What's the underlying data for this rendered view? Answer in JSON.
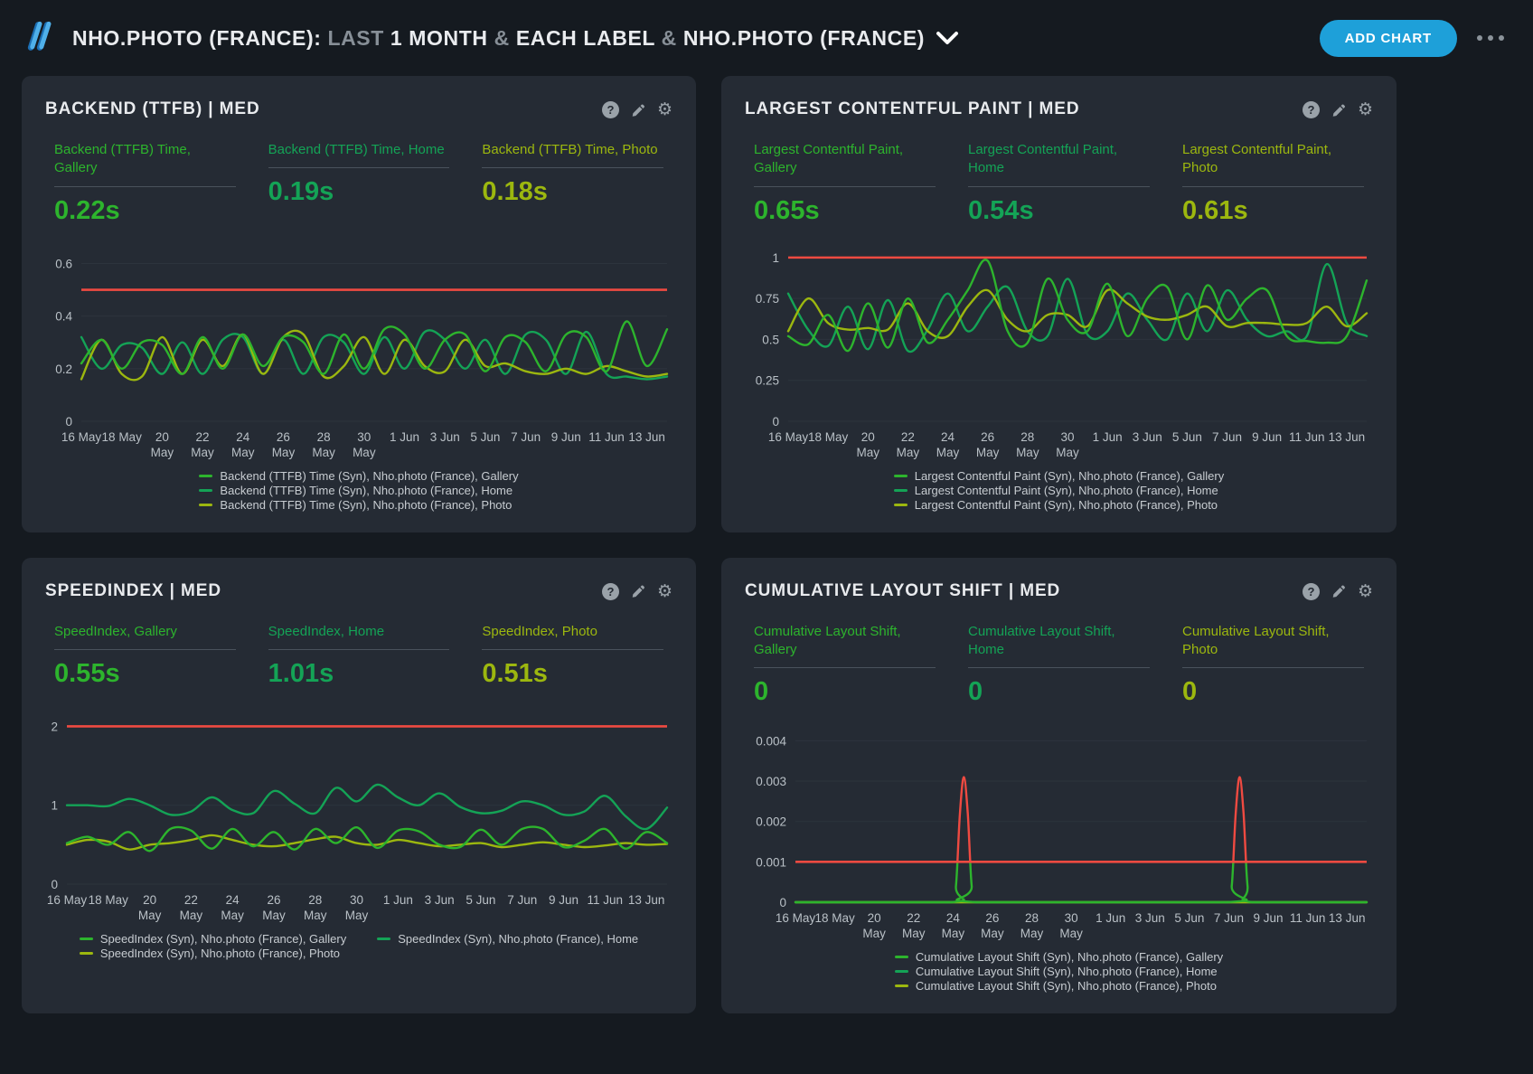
{
  "header": {
    "title_segments": [
      {
        "text": "NHO.PHOTO (FRANCE): ",
        "muted": false
      },
      {
        "text": "LAST ",
        "muted": true
      },
      {
        "text": "1 MONTH ",
        "muted": false
      },
      {
        "text": "& ",
        "muted": true
      },
      {
        "text": "EACH LABEL ",
        "muted": false
      },
      {
        "text": "& ",
        "muted": true
      },
      {
        "text": "NHO.PHOTO (FRANCE)",
        "muted": false
      }
    ],
    "add_chart_label": "ADD CHART",
    "icons": [
      "speedcurve-logo",
      "chevron-down-icon",
      "more-options-icon"
    ]
  },
  "card_icons": [
    "help-icon",
    "edit-icon",
    "settings-icon"
  ],
  "colors": {
    "page_bg": "#151a20",
    "panel_bg": "#252b34",
    "accent_blue": "#1ea0d9",
    "threshold_red": "#ef4a41",
    "series": {
      "gallery": "#2db42d",
      "home": "#14a356",
      "photo": "#9cb70f"
    }
  },
  "x_tick_note": "ticks every 2 days from 16 May to 13 Jun",
  "chart_data": [
    {
      "type": "line",
      "title": "BACKEND (TTFB) | MED",
      "stats": [
        {
          "label": "Backend (TTFB) Time, Gallery",
          "value": "0.22s",
          "series": "gallery"
        },
        {
          "label": "Backend (TTFB) Time, Home",
          "value": "0.19s",
          "series": "home"
        },
        {
          "label": "Backend (TTFB) Time, Photo",
          "value": "0.18s",
          "series": "photo"
        }
      ],
      "ylim": [
        0,
        0.66
      ],
      "yticks": [
        0,
        0.2,
        0.4,
        0.6
      ],
      "ytick_labels": [
        "0",
        "0.2",
        "0.4",
        "0.6"
      ],
      "threshold": 0.5,
      "x_tick_labels": [
        [
          "16 May",
          ""
        ],
        [
          "18 May",
          ""
        ],
        [
          "20",
          "May"
        ],
        [
          "22",
          "May"
        ],
        [
          "24",
          "May"
        ],
        [
          "26",
          "May"
        ],
        [
          "28",
          "May"
        ],
        [
          "30",
          "May"
        ],
        [
          "1 Jun",
          ""
        ],
        [
          "3 Jun",
          ""
        ],
        [
          "5 Jun",
          ""
        ],
        [
          "7 Jun",
          ""
        ],
        [
          "9 Jun",
          ""
        ],
        [
          "11 Jun",
          ""
        ],
        [
          "13 Jun",
          ""
        ]
      ],
      "series": [
        {
          "name": "home",
          "values": [
            0.32,
            0.2,
            0.29,
            0.28,
            0.18,
            0.3,
            0.18,
            0.31,
            0.32,
            0.18,
            0.31,
            0.18,
            0.32,
            0.3,
            0.18,
            0.32,
            0.2,
            0.34,
            0.31,
            0.2,
            0.31,
            0.18,
            0.33,
            0.31,
            0.18,
            0.34,
            0.18,
            0.17,
            0.16,
            0.17
          ]
        },
        {
          "name": "photo",
          "values": [
            0.16,
            0.31,
            0.18,
            0.17,
            0.32,
            0.18,
            0.31,
            0.21,
            0.33,
            0.18,
            0.32,
            0.33,
            0.17,
            0.21,
            0.32,
            0.18,
            0.31,
            0.21,
            0.19,
            0.31,
            0.21,
            0.22,
            0.19,
            0.18,
            0.2,
            0.18,
            0.21,
            0.19,
            0.17,
            0.18
          ]
        },
        {
          "name": "gallery",
          "values": [
            0.22,
            0.31,
            0.2,
            0.3,
            0.29,
            0.18,
            0.32,
            0.2,
            0.33,
            0.21,
            0.32,
            0.3,
            0.18,
            0.33,
            0.2,
            0.35,
            0.33,
            0.2,
            0.31,
            0.33,
            0.19,
            0.32,
            0.3,
            0.19,
            0.33,
            0.32,
            0.19,
            0.38,
            0.21,
            0.35
          ]
        }
      ],
      "legend_rows": [
        [
          {
            "series": "gallery",
            "label": "Backend (TTFB) Time (Syn), Nho.photo (France), Gallery"
          }
        ],
        [
          {
            "series": "home",
            "label": "Backend (TTFB) Time (Syn), Nho.photo (France), Home"
          }
        ],
        [
          {
            "series": "photo",
            "label": "Backend (TTFB) Time (Syn), Nho.photo (France), Photo"
          }
        ]
      ]
    },
    {
      "type": "line",
      "title": "LARGEST CONTENTFUL PAINT | MED",
      "stats": [
        {
          "label": "Largest Contentful Paint, Gallery",
          "value": "0.65s",
          "series": "gallery"
        },
        {
          "label": "Largest Contentful Paint, Home",
          "value": "0.54s",
          "series": "home"
        },
        {
          "label": "Largest Contentful Paint, Photo",
          "value": "0.61s",
          "series": "photo"
        }
      ],
      "ylim": [
        0,
        1.06
      ],
      "yticks": [
        0,
        0.25,
        0.5,
        0.75,
        1
      ],
      "ytick_labels": [
        "0",
        "0.25",
        "0.5",
        "0.75",
        "1"
      ],
      "threshold": 1,
      "x_tick_labels": [
        [
          "16 May",
          ""
        ],
        [
          "18 May",
          ""
        ],
        [
          "20",
          "May"
        ],
        [
          "22",
          "May"
        ],
        [
          "24",
          "May"
        ],
        [
          "26",
          "May"
        ],
        [
          "28",
          "May"
        ],
        [
          "30",
          "May"
        ],
        [
          "1 Jun",
          ""
        ],
        [
          "3 Jun",
          ""
        ],
        [
          "5 Jun",
          ""
        ],
        [
          "7 Jun",
          ""
        ],
        [
          "9 Jun",
          ""
        ],
        [
          "11 Jun",
          ""
        ],
        [
          "13 Jun",
          ""
        ]
      ],
      "series": [
        {
          "name": "home",
          "values": [
            0.78,
            0.56,
            0.46,
            0.7,
            0.44,
            0.74,
            0.43,
            0.56,
            0.78,
            0.55,
            0.7,
            0.82,
            0.55,
            0.52,
            0.87,
            0.53,
            0.55,
            0.78,
            0.62,
            0.5,
            0.78,
            0.55,
            0.8,
            0.62,
            0.52,
            0.55,
            0.52,
            0.96,
            0.6,
            0.52
          ]
        },
        {
          "name": "photo",
          "values": [
            0.55,
            0.75,
            0.6,
            0.56,
            0.57,
            0.56,
            0.72,
            0.55,
            0.52,
            0.7,
            0.8,
            0.62,
            0.55,
            0.65,
            0.65,
            0.58,
            0.8,
            0.72,
            0.64,
            0.62,
            0.65,
            0.7,
            0.58,
            0.6,
            0.6,
            0.59,
            0.6,
            0.7,
            0.58,
            0.66
          ]
        },
        {
          "name": "gallery",
          "values": [
            0.52,
            0.47,
            0.65,
            0.43,
            0.72,
            0.45,
            0.75,
            0.48,
            0.62,
            0.8,
            0.98,
            0.55,
            0.48,
            0.87,
            0.62,
            0.55,
            0.84,
            0.52,
            0.75,
            0.82,
            0.5,
            0.83,
            0.62,
            0.75,
            0.8,
            0.52,
            0.49,
            0.48,
            0.52,
            0.86
          ]
        }
      ],
      "legend_rows": [
        [
          {
            "series": "gallery",
            "label": "Largest Contentful Paint (Syn), Nho.photo (France), Gallery"
          }
        ],
        [
          {
            "series": "home",
            "label": "Largest Contentful Paint (Syn), Nho.photo (France), Home"
          }
        ],
        [
          {
            "series": "photo",
            "label": "Largest Contentful Paint (Syn), Nho.photo (France), Photo"
          }
        ]
      ]
    },
    {
      "type": "line",
      "title": "SPEEDINDEX | MED",
      "stats": [
        {
          "label": "SpeedIndex, Gallery",
          "value": "0.55s",
          "series": "gallery"
        },
        {
          "label": "SpeedIndex, Home",
          "value": "1.01s",
          "series": "home"
        },
        {
          "label": "SpeedIndex, Photo",
          "value": "0.51s",
          "series": "photo"
        }
      ],
      "ylim": [
        0,
        2.2
      ],
      "yticks": [
        0,
        1,
        2
      ],
      "ytick_labels": [
        "0",
        "1",
        "2"
      ],
      "threshold": 2,
      "x_tick_labels": [
        [
          "16 May",
          ""
        ],
        [
          "18 May",
          ""
        ],
        [
          "20",
          "May"
        ],
        [
          "22",
          "May"
        ],
        [
          "24",
          "May"
        ],
        [
          "26",
          "May"
        ],
        [
          "28",
          "May"
        ],
        [
          "30",
          "May"
        ],
        [
          "1 Jun",
          ""
        ],
        [
          "3 Jun",
          ""
        ],
        [
          "5 Jun",
          ""
        ],
        [
          "7 Jun",
          ""
        ],
        [
          "9 Jun",
          ""
        ],
        [
          "11 Jun",
          ""
        ],
        [
          "13 Jun",
          ""
        ]
      ],
      "series": [
        {
          "name": "home",
          "values": [
            1.0,
            1.0,
            0.99,
            1.08,
            1.0,
            0.88,
            0.92,
            1.1,
            0.94,
            0.9,
            1.18,
            1.02,
            0.9,
            1.22,
            1.05,
            1.26,
            1.1,
            1.0,
            1.15,
            0.98,
            0.9,
            0.93,
            1.05,
            1.0,
            0.88,
            0.92,
            1.12,
            0.86,
            0.7,
            0.97
          ]
        },
        {
          "name": "photo",
          "values": [
            0.5,
            0.56,
            0.54,
            0.44,
            0.5,
            0.52,
            0.56,
            0.62,
            0.56,
            0.5,
            0.48,
            0.52,
            0.57,
            0.6,
            0.52,
            0.5,
            0.56,
            0.52,
            0.48,
            0.5,
            0.52,
            0.47,
            0.5,
            0.53,
            0.5,
            0.47,
            0.49,
            0.52,
            0.5,
            0.51
          ]
        },
        {
          "name": "gallery",
          "values": [
            0.52,
            0.6,
            0.5,
            0.66,
            0.42,
            0.7,
            0.68,
            0.45,
            0.7,
            0.48,
            0.66,
            0.44,
            0.7,
            0.52,
            0.72,
            0.46,
            0.68,
            0.67,
            0.5,
            0.47,
            0.69,
            0.5,
            0.7,
            0.7,
            0.47,
            0.55,
            0.7,
            0.45,
            0.66,
            0.52
          ]
        }
      ],
      "legend_rows": [
        [
          {
            "series": "gallery",
            "label": "SpeedIndex (Syn), Nho.photo (France), Gallery"
          },
          {
            "series": "home",
            "label": "SpeedIndex (Syn), Nho.photo (France), Home"
          }
        ],
        [
          {
            "series": "photo",
            "label": "SpeedIndex (Syn), Nho.photo (France), Photo"
          }
        ]
      ]
    },
    {
      "type": "line",
      "title": "CUMULATIVE LAYOUT SHIFT | MED",
      "stats": [
        {
          "label": "Cumulative Layout Shift, Gallery",
          "value": "0",
          "series": "gallery"
        },
        {
          "label": "Cumulative Layout Shift, Home",
          "value": "0",
          "series": "home"
        },
        {
          "label": "Cumulative Layout Shift, Photo",
          "value": "0",
          "series": "photo"
        }
      ],
      "ylim": [
        0,
        0.0043
      ],
      "yticks": [
        0,
        0.001,
        0.002,
        0.003,
        0.004
      ],
      "ytick_labels": [
        "0",
        "0.001",
        "0.002",
        "0.003",
        "0.004"
      ],
      "threshold": 0.001,
      "threshold_split": true,
      "x_tick_labels": [
        [
          "16 May",
          ""
        ],
        [
          "18 May",
          ""
        ],
        [
          "20",
          "May"
        ],
        [
          "22",
          "May"
        ],
        [
          "24",
          "May"
        ],
        [
          "26",
          "May"
        ],
        [
          "28",
          "May"
        ],
        [
          "30",
          "May"
        ],
        [
          "1 Jun",
          ""
        ],
        [
          "3 Jun",
          ""
        ],
        [
          "5 Jun",
          ""
        ],
        [
          "7 Jun",
          ""
        ],
        [
          "9 Jun",
          ""
        ],
        [
          "11 Jun",
          ""
        ],
        [
          "13 Jun",
          ""
        ]
      ],
      "series": [
        {
          "name": "home",
          "values": [
            0,
            0,
            0,
            0,
            0,
            0,
            0,
            0,
            0,
            0,
            0,
            0,
            0,
            0,
            0,
            0,
            0,
            0,
            0,
            0,
            0,
            0,
            0,
            0,
            0,
            0,
            0,
            0,
            0,
            0
          ]
        },
        {
          "name": "photo",
          "values": [
            0,
            0,
            0,
            0,
            0,
            0,
            0,
            0,
            0,
            0,
            0,
            0,
            0,
            0,
            0,
            0,
            0,
            0,
            0,
            0,
            0,
            0,
            0,
            0,
            0,
            0,
            0,
            0,
            0,
            0
          ]
        },
        {
          "name": "gallery",
          "split": true,
          "x": [
            0,
            7.9,
            8.15,
            8.35,
            8.55,
            8.75,
            8.95,
            9.2,
            21.9,
            22.15,
            22.35,
            22.55,
            22.75,
            22.95,
            23.2,
            29
          ],
          "values": [
            0,
            0,
            0.0004,
            0.0022,
            0.0031,
            0.0022,
            0.0004,
            0,
            0,
            0.0004,
            0.0022,
            0.0031,
            0.0022,
            0.0004,
            0,
            0
          ]
        }
      ],
      "legend_rows": [
        [
          {
            "series": "gallery",
            "label": "Cumulative Layout Shift (Syn), Nho.photo (France), Gallery"
          }
        ],
        [
          {
            "series": "home",
            "label": "Cumulative Layout Shift (Syn), Nho.photo (France), Home"
          }
        ],
        [
          {
            "series": "photo",
            "label": "Cumulative Layout Shift (Syn), Nho.photo (France), Photo"
          }
        ]
      ]
    }
  ]
}
